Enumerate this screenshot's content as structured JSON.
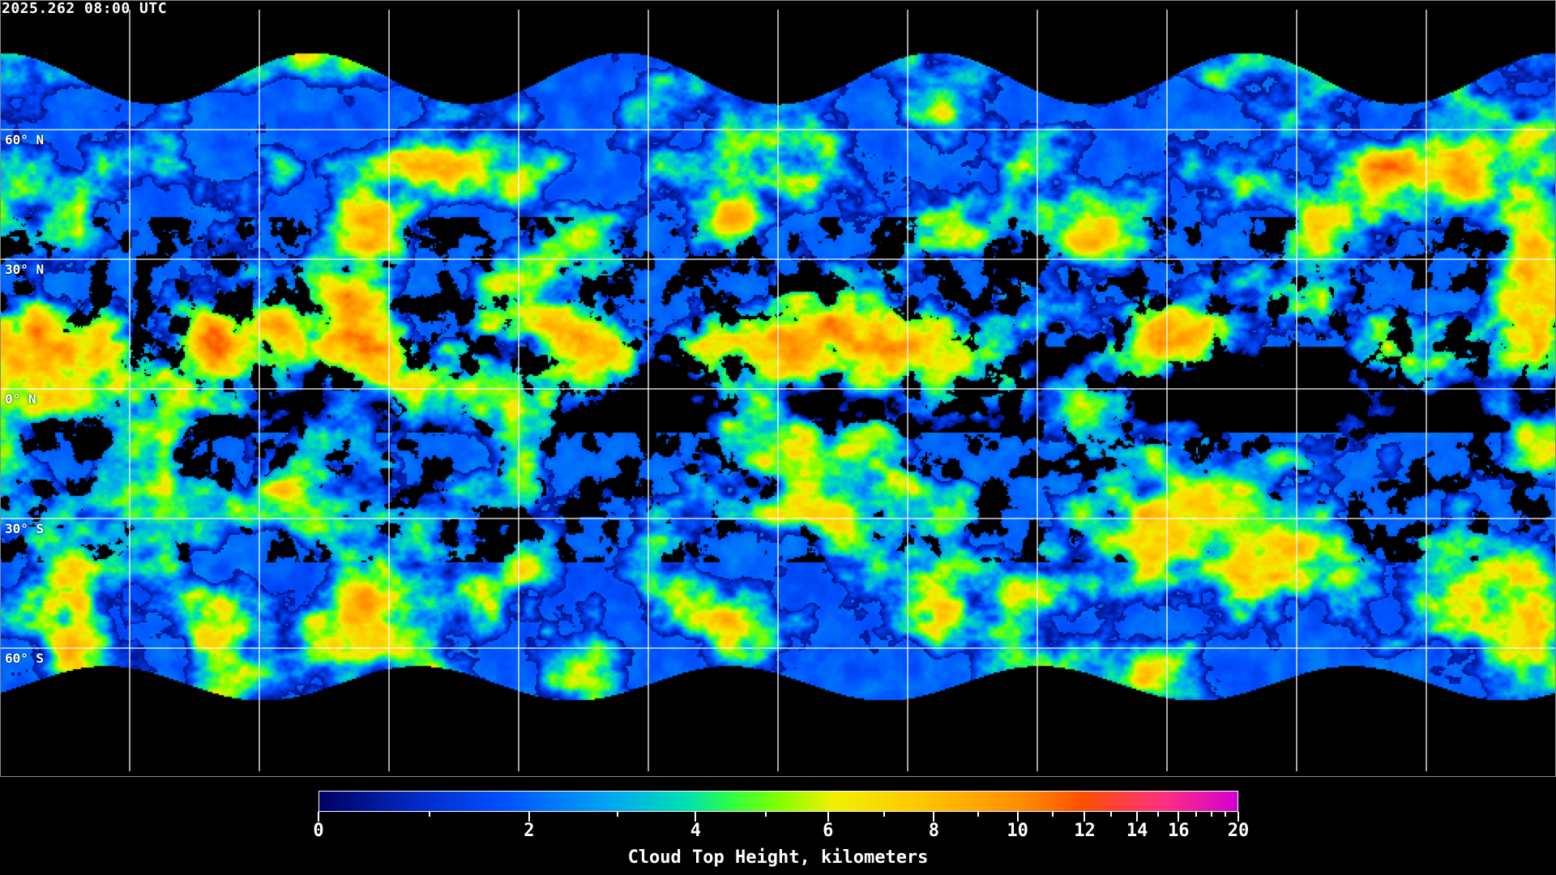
{
  "timestamp": "2025.262 08:00 UTC",
  "map": {
    "product": "Cloud Top Height",
    "lat_labels": [
      "60° N",
      "30° N",
      "0° N",
      "30° S",
      "60° S"
    ],
    "lat_values": [
      60,
      30,
      0,
      -30,
      -60
    ],
    "gridline_color": "#ffffff",
    "clear_sky_color": "#000000",
    "coastline_color": "#ffffff"
  },
  "colorbar": {
    "label": "Cloud Top Height, kilometers",
    "range": [
      0,
      20
    ],
    "tick_labels": [
      "0",
      "2",
      "4",
      "6",
      "8",
      "10",
      "12",
      "14",
      "16",
      "20"
    ],
    "tick_label_values": [
      0,
      2,
      4,
      6,
      8,
      10,
      12,
      14,
      16,
      20
    ],
    "minor_ticks": [
      1,
      3,
      5,
      7,
      9,
      11,
      13,
      15,
      17,
      18,
      19
    ],
    "colors": [
      "#000060",
      "#0030d0",
      "#0050ff",
      "#00a8f0",
      "#00e0b0",
      "#30ff40",
      "#80ff00",
      "#f0f000",
      "#ffc800",
      "#ff9000",
      "#ff5000",
      "#ff3080",
      "#d000d0"
    ]
  }
}
